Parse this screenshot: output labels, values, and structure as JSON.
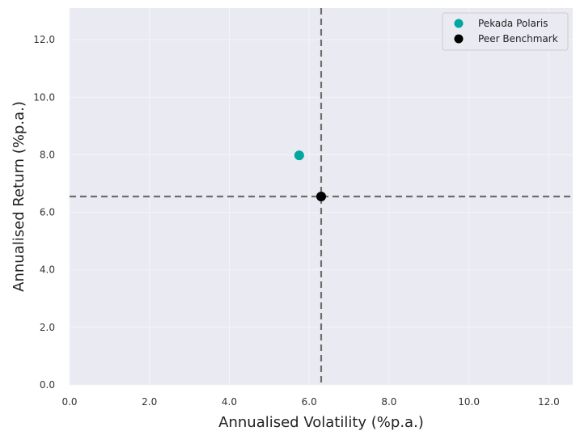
{
  "chart_data": {
    "type": "scatter",
    "xlabel": "Annualised Volatility (%p.a.)",
    "ylabel": "Annualised Return (%p.a.)",
    "xlim": [
      0,
      12.6
    ],
    "ylim": [
      0,
      13.1
    ],
    "x_ticks": [
      "0.0",
      "2.0",
      "4.0",
      "6.0",
      "8.0",
      "10.0",
      "12.0"
    ],
    "y_ticks": [
      "0.0",
      "2.0",
      "4.0",
      "6.0",
      "8.0",
      "10.0",
      "12.0"
    ],
    "grid": true,
    "legend_position": "top-right",
    "series": [
      {
        "name": "Pekada Polaris",
        "color": "#00a6a0",
        "x": [
          5.75
        ],
        "y": [
          7.98
        ]
      },
      {
        "name": "Peer Benchmark",
        "color": "#000000",
        "x": [
          6.3
        ],
        "y": [
          6.55
        ]
      }
    ],
    "reference_lines": {
      "x": 6.3,
      "y": 6.55,
      "style": "dashed",
      "color": "#6e6e6e"
    }
  }
}
